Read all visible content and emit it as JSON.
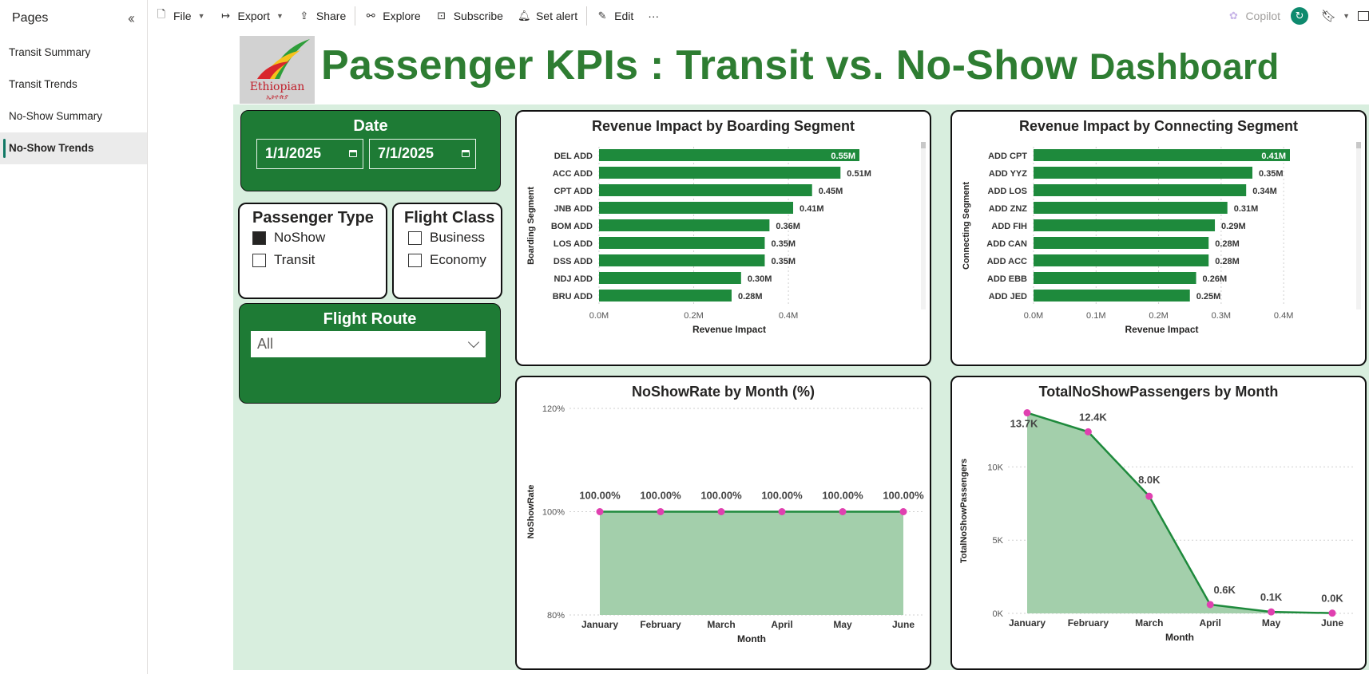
{
  "pages": {
    "title": "Pages",
    "collapse_icon": "double-chevron-left-icon",
    "items": [
      {
        "label": "Transit Summary",
        "active": false
      },
      {
        "label": "Transit Trends",
        "active": false
      },
      {
        "label": "No-Show Summary",
        "active": false
      },
      {
        "label": "No-Show Trends",
        "active": true
      }
    ]
  },
  "toolbar": {
    "file": "File",
    "export": "Export",
    "share": "Share",
    "explore": "Explore",
    "subscribe": "Subscribe",
    "set_alert": "Set alert",
    "edit": "Edit",
    "more": "···",
    "copilot": "Copilot"
  },
  "report": {
    "title_main": "Passenger KPIs : Transit vs. No-Show",
    "title_tail": "Dashboard",
    "logo_text": "Ethiopian",
    "logo_subtext": "ኢትዮጵያ",
    "colors": {
      "brand_green": "#1e7b35",
      "bar_green": "#1e8a3c",
      "area_fill": "#a3cfab",
      "marker": "#e040b0"
    }
  },
  "filters": {
    "date": {
      "label": "Date",
      "start": "1/1/2025",
      "end": "7/1/2025"
    },
    "passenger_type": {
      "label": "Passenger Type",
      "options": [
        {
          "label": "NoShow",
          "checked": true
        },
        {
          "label": "Transit",
          "checked": false
        }
      ]
    },
    "flight_class": {
      "label": "Flight Class",
      "options": [
        {
          "label": "Business",
          "checked": false
        },
        {
          "label": "Economy",
          "checked": false
        }
      ]
    },
    "flight_route": {
      "label": "Flight Route",
      "value": "All"
    }
  },
  "chart_data": [
    {
      "type": "bar",
      "orientation": "horizontal",
      "title": "Revenue Impact by Boarding Segment",
      "xlabel": "Revenue Impact",
      "ylabel": "Boarding Segment",
      "xlim": [
        0,
        0.55
      ],
      "xticks": [
        "0.0M",
        "0.2M",
        "0.4M"
      ],
      "xtick_values": [
        0,
        0.2,
        0.4
      ],
      "categories": [
        "DEL ADD",
        "ACC ADD",
        "CPT ADD",
        "JNB ADD",
        "BOM ADD",
        "LOS ADD",
        "DSS ADD",
        "NDJ ADD",
        "BRU ADD"
      ],
      "values": [
        0.55,
        0.51,
        0.45,
        0.41,
        0.36,
        0.35,
        0.35,
        0.3,
        0.28
      ],
      "labels": [
        "0.55M",
        "0.51M",
        "0.45M",
        "0.41M",
        "0.36M",
        "0.35M",
        "0.35M",
        "0.30M",
        "0.28M"
      ]
    },
    {
      "type": "bar",
      "orientation": "horizontal",
      "title": "Revenue Impact by Connecting Segment",
      "xlabel": "Revenue Impact",
      "ylabel": "Connecting Segment",
      "xlim": [
        0,
        0.41
      ],
      "xticks": [
        "0.0M",
        "0.1M",
        "0.2M",
        "0.3M",
        "0.4M"
      ],
      "xtick_values": [
        0,
        0.1,
        0.2,
        0.3,
        0.4
      ],
      "categories": [
        "ADD CPT",
        "ADD YYZ",
        "ADD LOS",
        "ADD ZNZ",
        "ADD FIH",
        "ADD CAN",
        "ADD ACC",
        "ADD EBB",
        "ADD JED"
      ],
      "values": [
        0.41,
        0.35,
        0.34,
        0.31,
        0.29,
        0.28,
        0.28,
        0.26,
        0.25
      ],
      "labels": [
        "0.41M",
        "0.35M",
        "0.34M",
        "0.31M",
        "0.29M",
        "0.28M",
        "0.28M",
        "0.26M",
        "0.25M"
      ]
    },
    {
      "type": "area",
      "title": "NoShowRate by Month (%)",
      "xlabel": "Month",
      "ylabel": "NoShowRate",
      "ylim": [
        80,
        120
      ],
      "yticks": [
        "80%",
        "100%",
        "120%"
      ],
      "ytick_values": [
        80,
        100,
        120
      ],
      "categories": [
        "January",
        "February",
        "March",
        "April",
        "May",
        "June"
      ],
      "values": [
        100,
        100,
        100,
        100,
        100,
        100
      ],
      "labels": [
        "100.00%",
        "100.00%",
        "100.00%",
        "100.00%",
        "100.00%",
        "100.00%"
      ]
    },
    {
      "type": "area",
      "title": "TotalNoShowPassengers by Month",
      "xlabel": "Month",
      "ylabel": "TotalNoShowPassengers",
      "ylim": [
        0,
        14000
      ],
      "yticks": [
        "0K",
        "5K",
        "10K"
      ],
      "ytick_values": [
        0,
        5000,
        10000
      ],
      "categories": [
        "January",
        "February",
        "March",
        "April",
        "May",
        "June"
      ],
      "values": [
        13700,
        12400,
        8000,
        600,
        100,
        20
      ],
      "labels": [
        "13.7K",
        "12.4K",
        "8.0K",
        "0.6K",
        "0.1K",
        "0.0K"
      ]
    }
  ]
}
